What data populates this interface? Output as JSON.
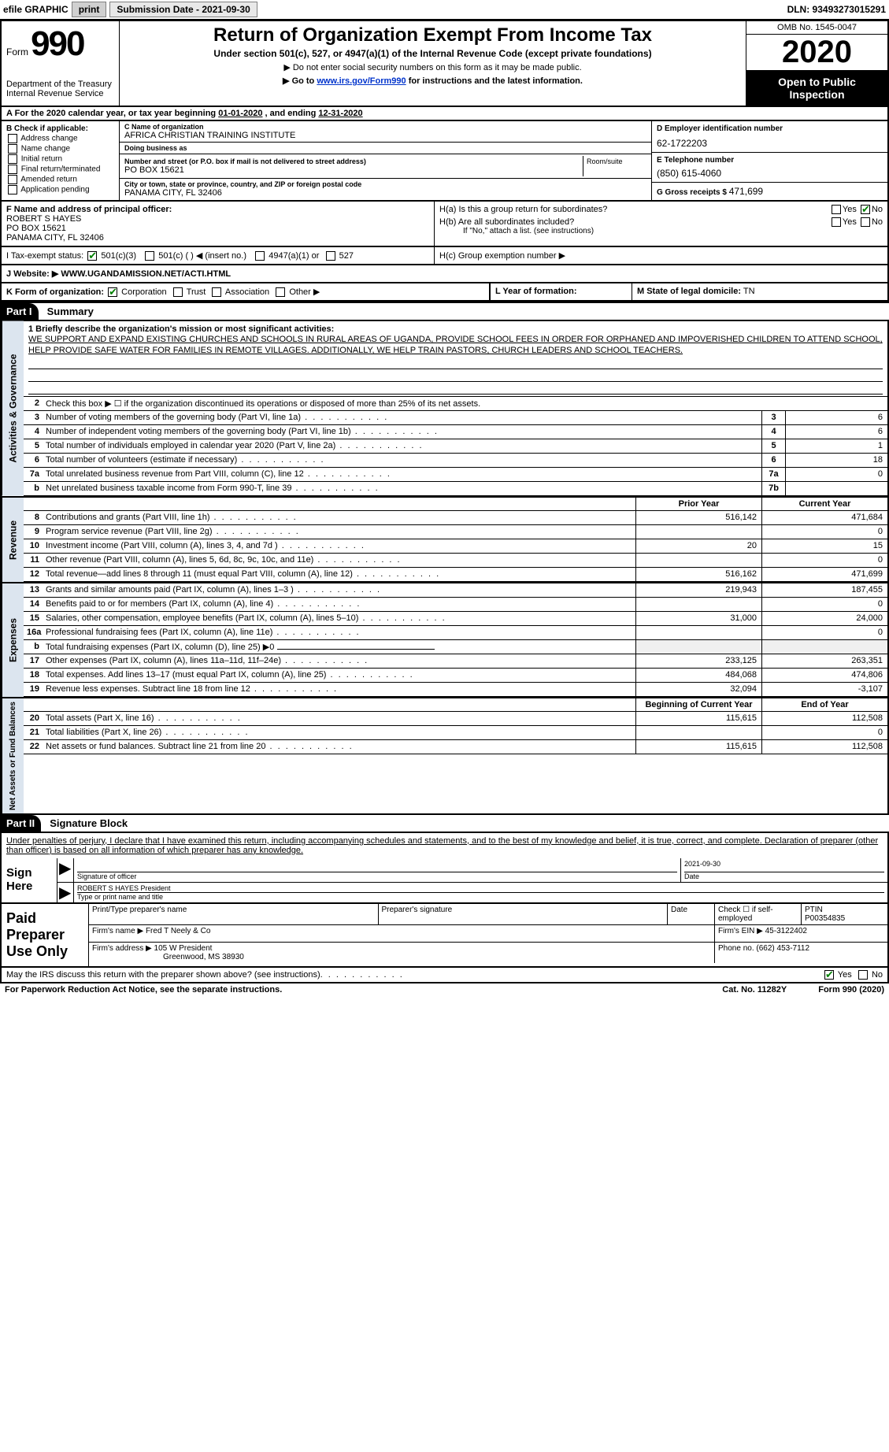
{
  "topbar": {
    "efile_label": "efile GRAPHIC",
    "print_btn": "print",
    "submission_label": "Submission Date - 2021-09-30",
    "dln": "DLN: 93493273015291"
  },
  "header": {
    "form_word": "Form",
    "form_no": "990",
    "dept": "Department of the Treasury",
    "irs": "Internal Revenue Service",
    "title": "Return of Organization Exempt From Income Tax",
    "subtitle": "Under section 501(c), 527, or 4947(a)(1) of the Internal Revenue Code (except private foundations)",
    "note1": "▶ Do not enter social security numbers on this form as it may be made public.",
    "note2_pre": "▶ Go to ",
    "note2_link": "www.irs.gov/Form990",
    "note2_post": " for instructions and the latest information.",
    "omb": "OMB No. 1545-0047",
    "year": "2020",
    "open": "Open to Public Inspection"
  },
  "period": {
    "text_a": "A For the 2020 calendar year, or tax year beginning ",
    "begin": "01-01-2020",
    "mid": " , and ending ",
    "end": "12-31-2020"
  },
  "box_b": {
    "title": "B Check if applicable:",
    "items": [
      "Address change",
      "Name change",
      "Initial return",
      "Final return/terminated",
      "Amended return",
      "Application pending"
    ]
  },
  "box_c": {
    "name_lbl": "C Name of organization",
    "name": "AFRICA CHRISTIAN TRAINING INSTITUTE",
    "dba_lbl": "Doing business as",
    "dba": "",
    "street_lbl": "Number and street (or P.O. box if mail is not delivered to street address)",
    "street": "PO BOX 15621",
    "room_lbl": "Room/suite",
    "city_lbl": "City or town, state or province, country, and ZIP or foreign postal code",
    "city": "PANAMA CITY, FL  32406"
  },
  "box_d": {
    "lbl": "D Employer identification number",
    "val": "62-1722203"
  },
  "box_e": {
    "lbl": "E Telephone number",
    "val": "(850) 615-4060"
  },
  "box_g": {
    "lbl": "G Gross receipts $",
    "val": "471,699"
  },
  "box_f": {
    "lbl": "F  Name and address of principal officer:",
    "name": "ROBERT S HAYES",
    "street": "PO BOX 15621",
    "city": "PANAMA CITY, FL  32406"
  },
  "box_h": {
    "a_lbl": "H(a)  Is this a group return for subordinates?",
    "b_lbl": "H(b)  Are all subordinates included?",
    "b_note": "If \"No,\" attach a list. (see instructions)",
    "c_lbl": "H(c)  Group exemption number ▶"
  },
  "box_i": {
    "lbl": "I    Tax-exempt status:",
    "opts": [
      "501(c)(3)",
      "501(c) (  ) ◀ (insert no.)",
      "4947(a)(1) or",
      "527"
    ]
  },
  "box_j": {
    "lbl": "J   Website: ▶",
    "val": "WWW.UGANDAMISSION.NET/ACTI.HTML"
  },
  "box_k": {
    "lbl": "K Form of organization:",
    "opts": [
      "Corporation",
      "Trust",
      "Association",
      "Other ▶"
    ]
  },
  "box_l": {
    "lbl": "L Year of formation:"
  },
  "box_m": {
    "lbl": "M State of legal domicile:",
    "val": "TN"
  },
  "part1": {
    "num": "Part I",
    "title": "Summary"
  },
  "mission": {
    "line1_lbl": "1  Briefly describe the organization's mission or most significant activities:",
    "text": "WE SUPPORT AND EXPAND EXISTING CHURCHES AND SCHOOLS IN RURAL AREAS OF UGANDA, PROVIDE SCHOOL FEES IN ORDER FOR ORPHANED AND IMPOVERISHED CHILDREN TO ATTEND SCHOOL, HELP PROVIDE SAFE WATER FOR FAMILIES IN REMOTE VILLAGES. ADDITIONALLY, WE HELP TRAIN PASTORS, CHURCH LEADERS AND SCHOOL TEACHERS."
  },
  "gov": {
    "side": "Activities & Governance",
    "l2": "Check this box ▶ ☐  if the organization discontinued its operations or disposed of more than 25% of its net assets.",
    "rows": [
      {
        "no": "3",
        "text": "Number of voting members of the governing body (Part VI, line 1a)",
        "ref": "3",
        "val": "6"
      },
      {
        "no": "4",
        "text": "Number of independent voting members of the governing body (Part VI, line 1b)",
        "ref": "4",
        "val": "6"
      },
      {
        "no": "5",
        "text": "Total number of individuals employed in calendar year 2020 (Part V, line 2a)",
        "ref": "5",
        "val": "1"
      },
      {
        "no": "6",
        "text": "Total number of volunteers (estimate if necessary)",
        "ref": "6",
        "val": "18"
      },
      {
        "no": "7a",
        "text": "Total unrelated business revenue from Part VIII, column (C), line 12",
        "ref": "7a",
        "val": "0"
      },
      {
        "no": "b",
        "text": "Net unrelated business taxable income from Form 990-T, line 39",
        "ref": "7b",
        "val": ""
      }
    ]
  },
  "revenue": {
    "side": "Revenue",
    "hdr_prior": "Prior Year",
    "hdr_curr": "Current Year",
    "rows": [
      {
        "no": "8",
        "text": "Contributions and grants (Part VIII, line 1h)",
        "py": "516,142",
        "cy": "471,684"
      },
      {
        "no": "9",
        "text": "Program service revenue (Part VIII, line 2g)",
        "py": "",
        "cy": "0"
      },
      {
        "no": "10",
        "text": "Investment income (Part VIII, column (A), lines 3, 4, and 7d )",
        "py": "20",
        "cy": "15"
      },
      {
        "no": "11",
        "text": "Other revenue (Part VIII, column (A), lines 5, 6d, 8c, 9c, 10c, and 11e)",
        "py": "",
        "cy": "0"
      },
      {
        "no": "12",
        "text": "Total revenue—add lines 8 through 11 (must equal Part VIII, column (A), line 12)",
        "py": "516,162",
        "cy": "471,699"
      }
    ]
  },
  "expenses": {
    "side": "Expenses",
    "rows": [
      {
        "no": "13",
        "text": "Grants and similar amounts paid (Part IX, column (A), lines 1–3 )",
        "py": "219,943",
        "cy": "187,455"
      },
      {
        "no": "14",
        "text": "Benefits paid to or for members (Part IX, column (A), line 4)",
        "py": "",
        "cy": "0"
      },
      {
        "no": "15",
        "text": "Salaries, other compensation, employee benefits (Part IX, column (A), lines 5–10)",
        "py": "31,000",
        "cy": "24,000"
      },
      {
        "no": "16a",
        "text": "Professional fundraising fees (Part IX, column (A), line 11e)",
        "py": "",
        "cy": "0"
      },
      {
        "no": "b",
        "text": "Total fundraising expenses (Part IX, column (D), line 25) ▶0",
        "py": "",
        "cy": "",
        "noval": true
      },
      {
        "no": "17",
        "text": "Other expenses (Part IX, column (A), lines 11a–11d, 11f–24e)",
        "py": "233,125",
        "cy": "263,351"
      },
      {
        "no": "18",
        "text": "Total expenses. Add lines 13–17 (must equal Part IX, column (A), line 25)",
        "py": "484,068",
        "cy": "474,806"
      },
      {
        "no": "19",
        "text": "Revenue less expenses. Subtract line 18 from line 12",
        "py": "32,094",
        "cy": "-3,107"
      }
    ]
  },
  "netassets": {
    "side": "Net Assets or Fund Balances",
    "hdr_begin": "Beginning of Current Year",
    "hdr_end": "End of Year",
    "rows": [
      {
        "no": "20",
        "text": "Total assets (Part X, line 16)",
        "py": "115,615",
        "cy": "112,508"
      },
      {
        "no": "21",
        "text": "Total liabilities (Part X, line 26)",
        "py": "",
        "cy": "0"
      },
      {
        "no": "22",
        "text": "Net assets or fund balances. Subtract line 21 from line 20",
        "py": "115,615",
        "cy": "112,508"
      }
    ]
  },
  "part2": {
    "num": "Part II",
    "title": "Signature Block"
  },
  "sig": {
    "decl": "Under penalties of perjury, I declare that I have examined this return, including accompanying schedules and statements, and to the best of my knowledge and belief, it is true, correct, and complete. Declaration of preparer (other than officer) is based on all information of which preparer has any knowledge.",
    "sign_here": "Sign Here",
    "sig_officer": "Signature of officer",
    "date_lbl": "Date",
    "date_val": "2021-09-30",
    "name": "ROBERT S HAYES  President",
    "name_lbl": "Type or print name and title"
  },
  "prep": {
    "title": "Paid Preparer Use Only",
    "c1": "Print/Type preparer's name",
    "c2": "Preparer's signature",
    "c3": "Date",
    "c4_lbl": "Check ☐ if self-employed",
    "c5_lbl": "PTIN",
    "c5_val": "P00354835",
    "firm_name_lbl": "Firm's name    ▶",
    "firm_name": "Fred T Neely & Co",
    "firm_ein_lbl": "Firm's EIN ▶",
    "firm_ein": "45-3122402",
    "firm_addr_lbl": "Firm's address ▶",
    "firm_addr1": "105 W President",
    "firm_addr2": "Greenwood, MS  38930",
    "phone_lbl": "Phone no.",
    "phone": "(662) 453-7112"
  },
  "discuss": {
    "text": "May the IRS discuss this return with the preparer shown above? (see instructions)",
    "yes": "Yes",
    "no": "No"
  },
  "footer": {
    "left": "For Paperwork Reduction Act Notice, see the separate instructions.",
    "mid": "Cat. No. 11282Y",
    "right": "Form 990 (2020)"
  },
  "colors": {
    "side_bg": "#dce5ef",
    "link": "#0033cc",
    "check": "#008000"
  }
}
